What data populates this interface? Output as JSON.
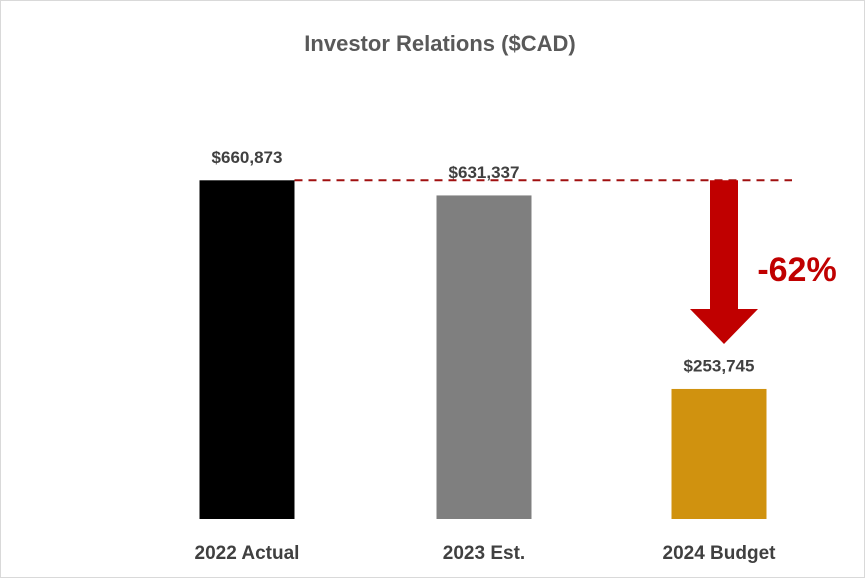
{
  "chart_data": {
    "type": "bar",
    "title": "Investor Relations ($CAD)",
    "categories": [
      "2022 Actual",
      "2023 Est.",
      "2024 Budget"
    ],
    "values": [
      660873,
      631337,
      253745
    ],
    "value_labels": [
      "$660,873",
      "$631,337",
      "$253,745"
    ],
    "colors": [
      "#000000",
      "#7f7f7f",
      "#d0920f"
    ],
    "ylim": [
      0,
      800000
    ],
    "annotation": "-62%"
  }
}
